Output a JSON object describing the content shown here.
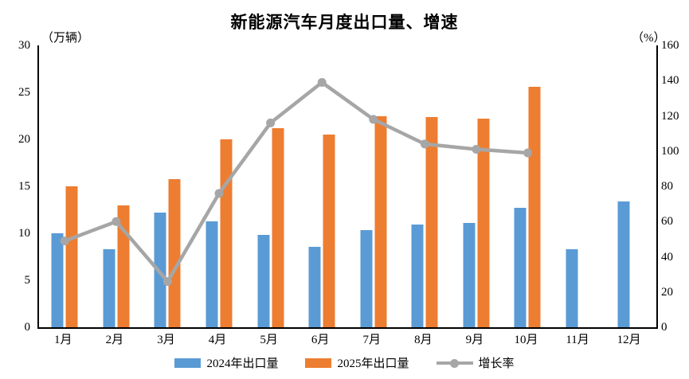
{
  "title": "新能源汽车月度出口量、增速",
  "left_axis": {
    "unit": "（万辆）",
    "ticks": [
      0,
      5,
      10,
      15,
      20,
      25,
      30
    ],
    "max": 30
  },
  "right_axis": {
    "unit": "（%）",
    "ticks": [
      0,
      20,
      40,
      60,
      80,
      100,
      120,
      140,
      160
    ],
    "max": 160
  },
  "colors": {
    "bar_2024": "#5B9BD5",
    "bar_2025": "#ED7D31",
    "growth_line": "#A6A6A6",
    "axis": "#000000"
  },
  "chart_data": {
    "type": "bar+line",
    "title": "新能源汽车月度出口量、增速",
    "categories": [
      "1月",
      "2月",
      "3月",
      "4月",
      "5月",
      "6月",
      "7月",
      "8月",
      "9月",
      "10月",
      "11月",
      "12月"
    ],
    "left_ylim": [
      0,
      30
    ],
    "right_ylim": [
      0,
      160
    ],
    "left_unit": "万辆",
    "right_unit": "%",
    "grid": false,
    "legend_position": "bottom",
    "series": [
      {
        "name": "2024年出口量",
        "type": "bar",
        "axis": "left",
        "color": "#5B9BD5",
        "values": [
          10.0,
          8.3,
          12.2,
          11.3,
          9.8,
          8.6,
          10.3,
          10.9,
          11.1,
          12.7,
          8.3,
          13.4
        ]
      },
      {
        "name": "2025年出口量",
        "type": "bar",
        "axis": "left",
        "color": "#ED7D31",
        "values": [
          15.0,
          13.0,
          15.8,
          20.0,
          21.2,
          20.5,
          22.5,
          22.4,
          22.2,
          25.6,
          null,
          null
        ]
      },
      {
        "name": "增长率",
        "type": "line",
        "axis": "right",
        "color": "#A6A6A6",
        "values": [
          49,
          60,
          26,
          76,
          116,
          139,
          118,
          104,
          101,
          99,
          null,
          null
        ]
      }
    ]
  }
}
